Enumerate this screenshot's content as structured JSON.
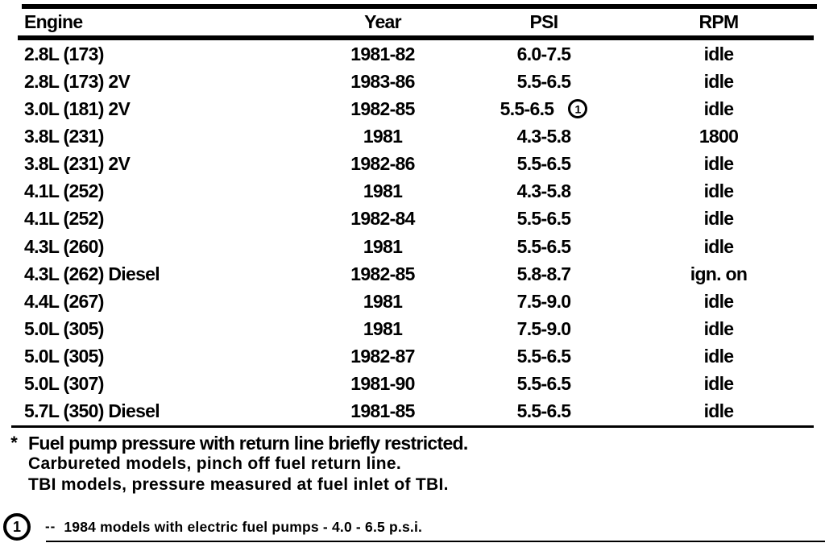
{
  "table": {
    "columns": [
      "Engine",
      "Year",
      "PSI",
      "RPM"
    ],
    "rows": [
      {
        "engine": "2.8L (173)",
        "year": "1981-82",
        "psi": "6.0-7.5",
        "psi_note": "",
        "rpm": "idle"
      },
      {
        "engine": "2.8L (173) 2V",
        "year": "1983-86",
        "psi": "5.5-6.5",
        "psi_note": "",
        "rpm": "idle"
      },
      {
        "engine": "3.0L (181) 2V",
        "year": "1982-85",
        "psi": "5.5-6.5",
        "psi_note": "1",
        "rpm": "idle"
      },
      {
        "engine": "3.8L (231)",
        "year": "1981",
        "psi": "4.3-5.8",
        "psi_note": "",
        "rpm": "1800"
      },
      {
        "engine": "3.8L (231) 2V",
        "year": "1982-86",
        "psi": "5.5-6.5",
        "psi_note": "",
        "rpm": "idle"
      },
      {
        "engine": "4.1L (252)",
        "year": "1981",
        "psi": "4.3-5.8",
        "psi_note": "",
        "rpm": "idle"
      },
      {
        "engine": "4.1L (252)",
        "year": "1982-84",
        "psi": "5.5-6.5",
        "psi_note": "",
        "rpm": "idle"
      },
      {
        "engine": "4.3L (260)",
        "year": "1981",
        "psi": "5.5-6.5",
        "psi_note": "",
        "rpm": "idle"
      },
      {
        "engine": "4.3L (262) Diesel",
        "year": "1982-85",
        "psi": "5.8-8.7",
        "psi_note": "",
        "rpm": "ign. on"
      },
      {
        "engine": "4.4L (267)",
        "year": "1981",
        "psi": "7.5-9.0",
        "psi_note": "",
        "rpm": "idle"
      },
      {
        "engine": "5.0L (305)",
        "year": "1981",
        "psi": "7.5-9.0",
        "psi_note": "",
        "rpm": "idle"
      },
      {
        "engine": "5.0L (305)",
        "year": "1982-87",
        "psi": "5.5-6.5",
        "psi_note": "",
        "rpm": "idle"
      },
      {
        "engine": "5.0L (307)",
        "year": "1981-90",
        "psi": "5.5-6.5",
        "psi_note": "",
        "rpm": "idle"
      },
      {
        "engine": "5.7L (350) Diesel",
        "year": "1981-85",
        "psi": "5.5-6.5",
        "psi_note": "",
        "rpm": "idle"
      }
    ]
  },
  "footnotes": {
    "asterisk_symbol": "*",
    "asterisk_lines": [
      "Fuel pump pressure with return line briefly restricted.",
      "Carbureted models, pinch off fuel return line.",
      "TBI models, pressure measured at fuel inlet of TBI."
    ],
    "circled_note": {
      "symbol": "1",
      "dashes": "--",
      "text": "1984 models with electric fuel pumps - 4.0 - 6.5 p.s.i."
    }
  },
  "colors": {
    "ink": "#000000",
    "paper": "#ffffff"
  }
}
